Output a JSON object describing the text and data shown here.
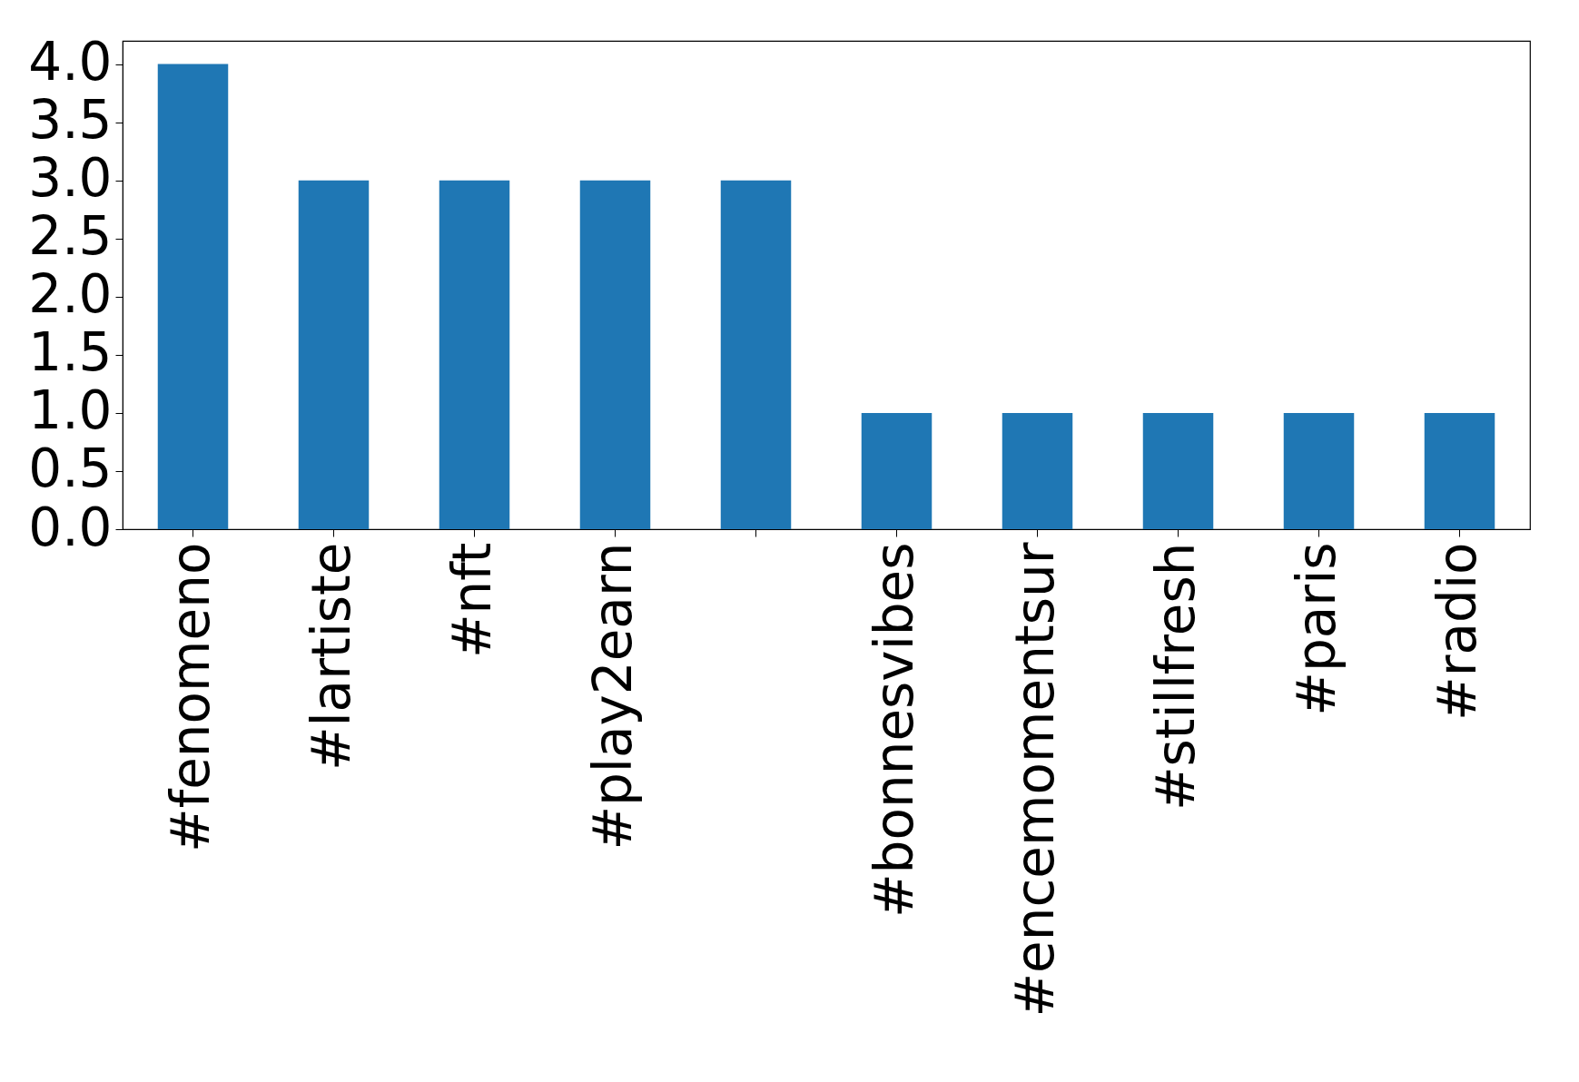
{
  "chart_data": {
    "type": "bar",
    "categories": [
      "#fenomeno",
      "#lartiste",
      "#nft",
      "#play2earn",
      null,
      "#bonnesvibes",
      "#encemomentsur",
      "#stillfresh",
      "#paris",
      "#radio"
    ],
    "values": [
      4,
      3,
      3,
      3,
      3,
      1,
      1,
      1,
      1,
      1
    ],
    "color": "#1f77b4",
    "ylim": [
      0,
      4.2
    ],
    "yticks": [
      {
        "value": 0,
        "label": "0.0"
      },
      {
        "value": 0.5,
        "label": "0.5"
      },
      {
        "value": 1,
        "label": "1.0"
      },
      {
        "value": 1.5,
        "label": "1.5"
      },
      {
        "value": 2,
        "label": "2.0"
      },
      {
        "value": 2.5,
        "label": "2.5"
      },
      {
        "value": 3,
        "label": "3.0"
      },
      {
        "value": 3.5,
        "label": "3.5"
      },
      {
        "value": 4,
        "label": "4.0"
      }
    ],
    "grid": false
  }
}
